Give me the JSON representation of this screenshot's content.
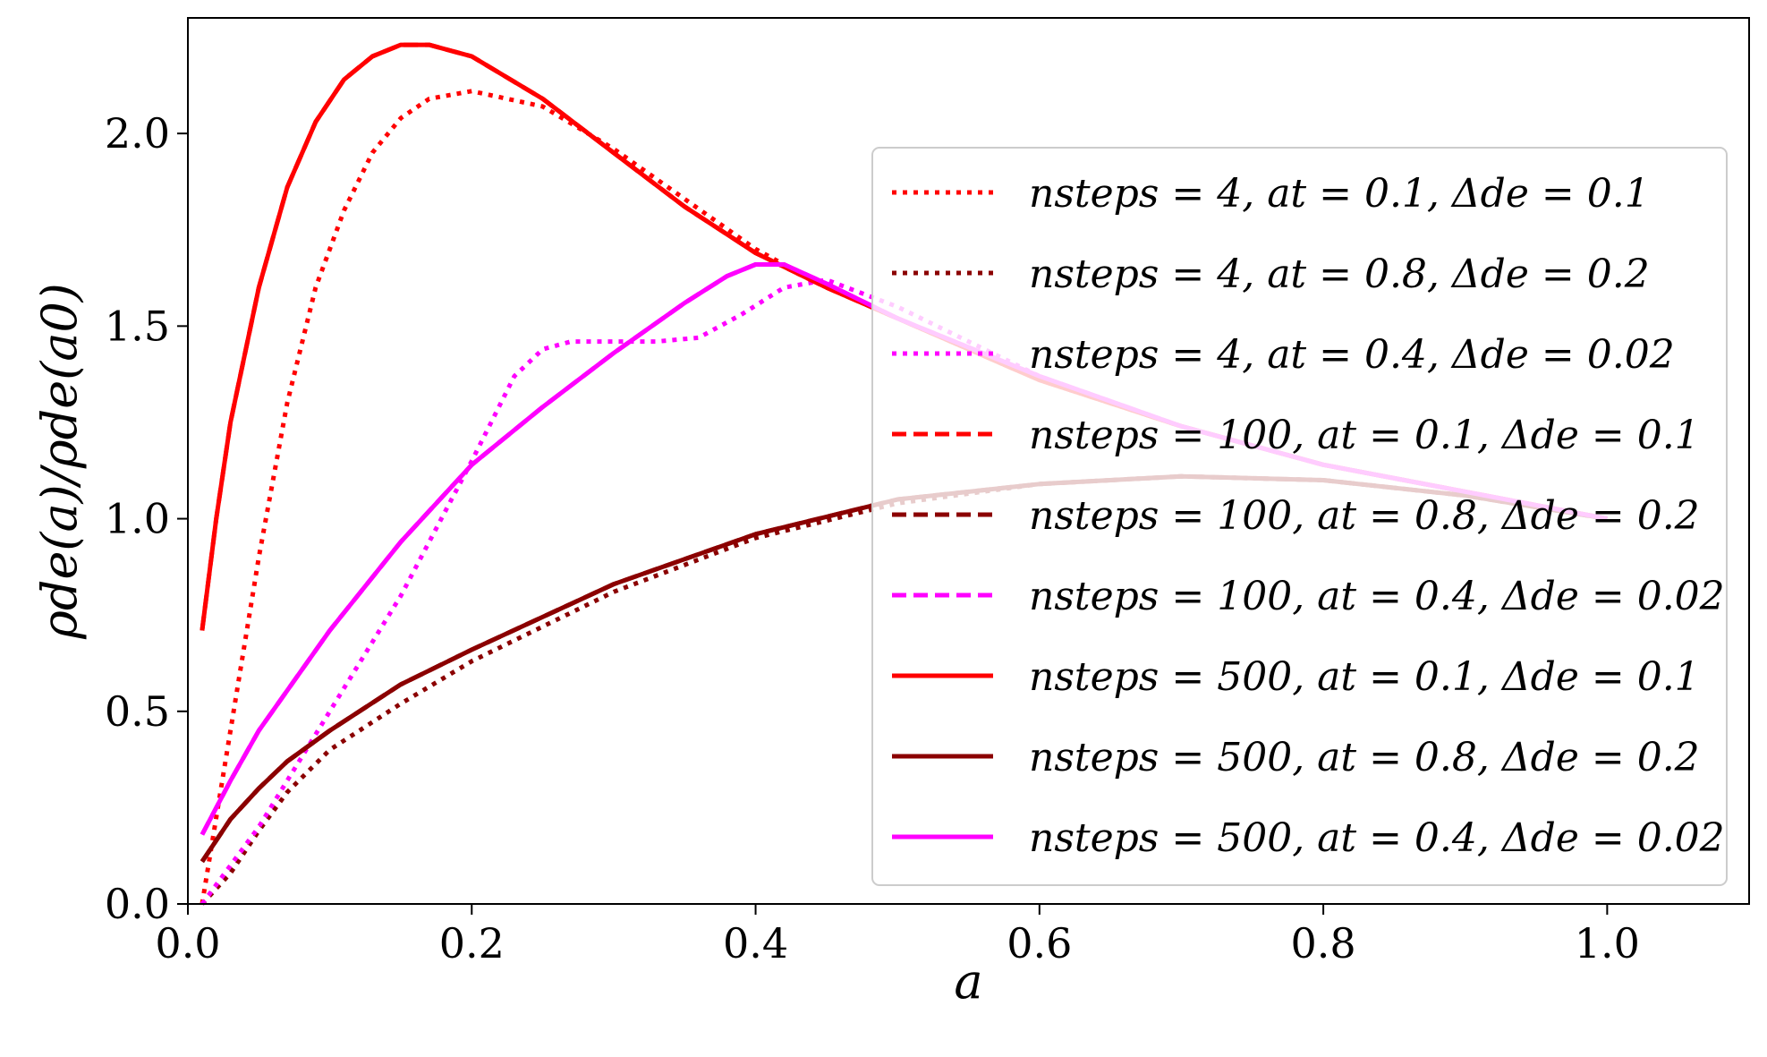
{
  "chart_data": {
    "type": "line",
    "title": "",
    "xlabel": "a",
    "ylabel": "ρde(a)/ρde(a0)",
    "xlim": [
      0.0,
      1.1
    ],
    "ylim": [
      0.0,
      2.3
    ],
    "xticks": [
      0.0,
      0.2,
      0.4,
      0.6,
      0.8,
      1.0
    ],
    "xtick_labels": [
      "0.0",
      "0.2",
      "0.4",
      "0.6",
      "0.8",
      "1.0"
    ],
    "yticks": [
      0.0,
      0.5,
      1.0,
      1.5,
      2.0
    ],
    "ytick_labels": [
      "0.0",
      "0.5",
      "1.0",
      "1.5",
      "2.0"
    ],
    "grid": false,
    "legend_position": "right",
    "series": [
      {
        "name": "n_steps = 4, a_t = 0.1, Δ_de = 0.1",
        "label": "nsteps = 4, at = 0.1, Δde = 0.1",
        "color": "#ff0000",
        "style": "dotted",
        "x": [
          0.01,
          0.03,
          0.05,
          0.07,
          0.09,
          0.11,
          0.13,
          0.15,
          0.17,
          0.2,
          0.25,
          0.3,
          0.35,
          0.4,
          0.45,
          0.5,
          0.6,
          0.7,
          0.8,
          0.9,
          1.0
        ],
        "y": [
          0.0,
          0.45,
          0.9,
          1.3,
          1.6,
          1.8,
          1.95,
          2.04,
          2.09,
          2.11,
          2.07,
          1.96,
          1.83,
          1.7,
          1.6,
          1.52,
          1.36,
          1.24,
          1.14,
          1.07,
          1.0
        ]
      },
      {
        "name": "n_steps = 4, a_t = 0.8, Δ_de = 0.2",
        "label": "nsteps = 4, at = 0.8, Δde = 0.2",
        "color": "#8b0000",
        "style": "dotted",
        "x": [
          0.01,
          0.03,
          0.05,
          0.07,
          0.1,
          0.15,
          0.2,
          0.3,
          0.4,
          0.5,
          0.6,
          0.7,
          0.8,
          0.9,
          1.0
        ],
        "y": [
          0.0,
          0.08,
          0.19,
          0.29,
          0.4,
          0.52,
          0.63,
          0.81,
          0.95,
          1.04,
          1.09,
          1.11,
          1.1,
          1.06,
          1.0
        ]
      },
      {
        "name": "n_steps = 4, a_t = 0.4, Δ_de = 0.02",
        "label": "nsteps = 4, at = 0.4, Δde = 0.02",
        "color": "#ff00ff",
        "style": "dotted",
        "x": [
          0.01,
          0.05,
          0.1,
          0.15,
          0.2,
          0.23,
          0.25,
          0.27,
          0.3,
          0.33,
          0.36,
          0.39,
          0.42,
          0.45,
          0.5,
          0.6,
          0.7,
          0.8,
          0.9,
          1.0
        ],
        "y": [
          0.0,
          0.2,
          0.5,
          0.8,
          1.15,
          1.37,
          1.44,
          1.46,
          1.46,
          1.46,
          1.47,
          1.53,
          1.6,
          1.62,
          1.55,
          1.37,
          1.24,
          1.14,
          1.07,
          1.0
        ]
      },
      {
        "name": "n_steps = 100, a_t = 0.1, Δ_de = 0.1",
        "label": "nsteps = 100, at = 0.1, Δde = 0.1",
        "color": "#ff0000",
        "style": "dashed",
        "x": [
          0.01,
          0.02,
          0.03,
          0.05,
          0.07,
          0.09,
          0.11,
          0.13,
          0.15,
          0.17,
          0.2,
          0.25,
          0.3,
          0.35,
          0.4,
          0.45,
          0.5,
          0.6,
          0.7,
          0.8,
          0.9,
          1.0
        ],
        "y": [
          0.71,
          1.0,
          1.25,
          1.6,
          1.86,
          2.03,
          2.14,
          2.2,
          2.23,
          2.23,
          2.2,
          2.09,
          1.95,
          1.81,
          1.69,
          1.6,
          1.52,
          1.36,
          1.24,
          1.14,
          1.07,
          1.0
        ]
      },
      {
        "name": "n_steps = 100, a_t = 0.8, Δ_de = 0.2",
        "label": "nsteps = 100, at = 0.8, Δde = 0.2",
        "color": "#8b0000",
        "style": "dashed",
        "x": [
          0.01,
          0.03,
          0.05,
          0.07,
          0.1,
          0.15,
          0.2,
          0.3,
          0.4,
          0.5,
          0.6,
          0.7,
          0.8,
          0.9,
          1.0
        ],
        "y": [
          0.11,
          0.22,
          0.3,
          0.37,
          0.45,
          0.57,
          0.66,
          0.83,
          0.96,
          1.05,
          1.09,
          1.11,
          1.1,
          1.06,
          1.0
        ]
      },
      {
        "name": "n_steps = 100, a_t = 0.4, Δ_de = 0.02",
        "label": "nsteps = 100, at = 0.4, Δde = 0.02",
        "color": "#ff00ff",
        "style": "dashed",
        "x": [
          0.01,
          0.03,
          0.05,
          0.1,
          0.15,
          0.2,
          0.25,
          0.3,
          0.35,
          0.38,
          0.4,
          0.42,
          0.45,
          0.5,
          0.6,
          0.7,
          0.8,
          0.9,
          1.0
        ],
        "y": [
          0.18,
          0.32,
          0.45,
          0.71,
          0.94,
          1.14,
          1.29,
          1.43,
          1.56,
          1.63,
          1.66,
          1.66,
          1.61,
          1.52,
          1.37,
          1.24,
          1.14,
          1.07,
          1.0
        ]
      },
      {
        "name": "n_steps = 500, a_t = 0.1, Δ_de = 0.1",
        "label": "nsteps = 500, at = 0.1, Δde = 0.1",
        "color": "#ff0000",
        "style": "solid",
        "x": [
          0.01,
          0.02,
          0.03,
          0.05,
          0.07,
          0.09,
          0.11,
          0.13,
          0.15,
          0.17,
          0.2,
          0.25,
          0.3,
          0.35,
          0.4,
          0.45,
          0.5,
          0.6,
          0.7,
          0.8,
          0.9,
          1.0
        ],
        "y": [
          0.71,
          1.0,
          1.25,
          1.6,
          1.86,
          2.03,
          2.14,
          2.2,
          2.23,
          2.23,
          2.2,
          2.09,
          1.95,
          1.81,
          1.69,
          1.6,
          1.52,
          1.36,
          1.24,
          1.14,
          1.07,
          1.0
        ]
      },
      {
        "name": "n_steps = 500, a_t = 0.8, Δ_de = 0.2",
        "label": "nsteps = 500, at = 0.8, Δde = 0.2",
        "color": "#8b0000",
        "style": "solid",
        "x": [
          0.01,
          0.03,
          0.05,
          0.07,
          0.1,
          0.15,
          0.2,
          0.3,
          0.4,
          0.5,
          0.6,
          0.7,
          0.8,
          0.9,
          1.0
        ],
        "y": [
          0.11,
          0.22,
          0.3,
          0.37,
          0.45,
          0.57,
          0.66,
          0.83,
          0.96,
          1.05,
          1.09,
          1.11,
          1.1,
          1.06,
          1.0
        ]
      },
      {
        "name": "n_steps = 500, a_t = 0.4, Δ_de = 0.02",
        "label": "nsteps = 500, at = 0.4, Δde = 0.02",
        "color": "#ff00ff",
        "style": "solid",
        "x": [
          0.01,
          0.03,
          0.05,
          0.1,
          0.15,
          0.2,
          0.25,
          0.3,
          0.35,
          0.38,
          0.4,
          0.42,
          0.45,
          0.5,
          0.6,
          0.7,
          0.8,
          0.9,
          1.0
        ],
        "y": [
          0.18,
          0.32,
          0.45,
          0.71,
          0.94,
          1.14,
          1.29,
          1.43,
          1.56,
          1.63,
          1.66,
          1.66,
          1.61,
          1.52,
          1.37,
          1.24,
          1.14,
          1.07,
          1.0
        ]
      }
    ]
  }
}
